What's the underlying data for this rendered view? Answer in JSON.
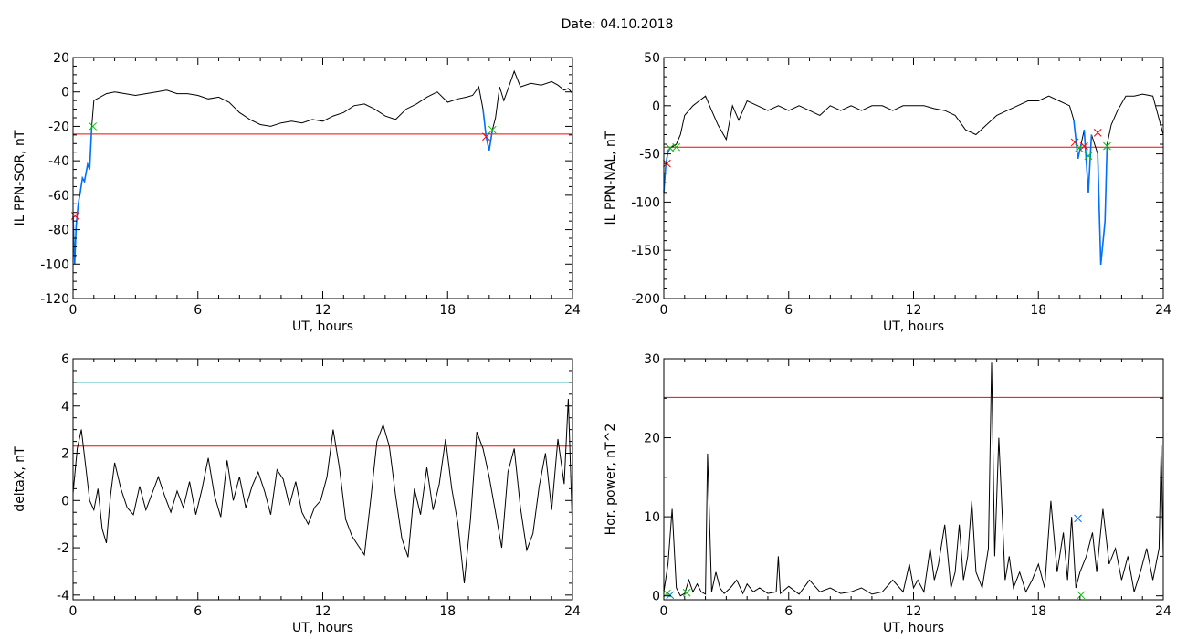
{
  "title": "Date:  04.10.2018",
  "colors": {
    "trace": "#000000",
    "threshold": "#ff0000",
    "segment": "#0070ff",
    "cyan_threshold": "#00a0a0",
    "start_marker": "#00c000",
    "end_marker": "#ff0000"
  },
  "chart_data": [
    {
      "id": "sor",
      "type": "line",
      "xlabel": "UT, hours",
      "ylabel": "IL PPN-SOR, nT",
      "xlim": [
        0,
        24
      ],
      "ylim": [
        -120,
        20
      ],
      "xticks": [
        0,
        6,
        12,
        18,
        24
      ],
      "yticks": [
        20,
        0,
        -20,
        -40,
        -60,
        -80,
        -100,
        -120
      ],
      "thresholds": [
        {
          "value": -24.5,
          "color": "#ff0000"
        }
      ],
      "series": [
        {
          "color": "#000000",
          "x": [
            0,
            0.08,
            0.15,
            0.25,
            0.35,
            0.45,
            0.55,
            0.7,
            0.8,
            0.9,
            1.0,
            1.3,
            1.6,
            2,
            2.5,
            3,
            3.5,
            4,
            4.5,
            5,
            5.5,
            6,
            6.5,
            7,
            7.5,
            8,
            8.5,
            9,
            9.5,
            10,
            10.5,
            11,
            11.5,
            12,
            12.5,
            13,
            13.5,
            14,
            14.5,
            15,
            15.5,
            16,
            16.5,
            17,
            17.5,
            18,
            18.5,
            18.9,
            19.2,
            19.5,
            19.7,
            19.85,
            20.0,
            20.15,
            20.3,
            20.5,
            20.7,
            21,
            21.2,
            21.5,
            22,
            22.5,
            23,
            23.3,
            23.6,
            23.8,
            24
          ],
          "y": [
            -72,
            -100,
            -78,
            -65,
            -58,
            -50,
            -52,
            -42,
            -45,
            -20,
            -5,
            -3,
            -1,
            0,
            -1,
            -2,
            -1,
            0,
            1,
            -1,
            -1,
            -2,
            -4,
            -3,
            -6,
            -12,
            -16,
            -19,
            -20,
            -18,
            -17,
            -18,
            -16,
            -17,
            -14,
            -12,
            -8,
            -7,
            -10,
            -14,
            -16,
            -10,
            -7,
            -3,
            0,
            -6,
            -4,
            -3,
            -2,
            3,
            -10,
            -26,
            -34,
            -22,
            -15,
            3,
            -5,
            5,
            12,
            3,
            5,
            4,
            6,
            4,
            1,
            2,
            -1
          ]
        },
        {
          "color": "#0070ff",
          "x": [
            0,
            0.08,
            0.15,
            0.25,
            0.35,
            0.45,
            0.55,
            0.7,
            0.8,
            0.9
          ],
          "y": [
            -72,
            -100,
            -78,
            -65,
            -58,
            -50,
            -52,
            -42,
            -45,
            -20
          ]
        },
        {
          "color": "#0070ff",
          "x": [
            19.7,
            19.85,
            20.0,
            20.15
          ],
          "y": [
            -10,
            -26,
            -34,
            -22
          ]
        }
      ],
      "markers": [
        {
          "x": 0.1,
          "y": -72,
          "color": "#ff0000"
        },
        {
          "x": 0.95,
          "y": -20,
          "color": "#00c000"
        },
        {
          "x": 19.85,
          "y": -26,
          "color": "#ff0000"
        },
        {
          "x": 20.15,
          "y": -22,
          "color": "#00c000"
        }
      ]
    },
    {
      "id": "nal",
      "type": "line",
      "xlabel": "UT, hours",
      "ylabel": "IL PPN-NAL, nT",
      "xlim": [
        0,
        24
      ],
      "ylim": [
        -200,
        50
      ],
      "xticks": [
        0,
        6,
        12,
        18,
        24
      ],
      "yticks": [
        50,
        0,
        -50,
        -100,
        -150,
        -200
      ],
      "thresholds": [
        {
          "value": -43,
          "color": "#ff0000"
        }
      ],
      "series": [
        {
          "color": "#000000",
          "x": [
            0,
            0.1,
            0.2,
            0.3,
            0.45,
            0.6,
            0.8,
            1.0,
            1.2,
            1.4,
            1.7,
            2.0,
            2.3,
            2.6,
            3.0,
            3.3,
            3.6,
            4.0,
            4.5,
            5,
            5.5,
            6,
            6.5,
            7,
            7.5,
            8,
            8.5,
            9,
            9.5,
            10,
            10.5,
            11,
            11.5,
            12,
            12.5,
            13,
            13.5,
            14,
            14.5,
            15,
            15.5,
            16,
            16.5,
            17,
            17.5,
            18,
            18.5,
            19,
            19.5,
            19.7,
            19.9,
            20.05,
            20.2,
            20.4,
            20.55,
            20.7,
            20.85,
            21.0,
            21.2,
            21.3,
            21.5,
            21.8,
            22.2,
            22.6,
            23,
            23.5,
            24
          ],
          "y": [
            -90,
            -60,
            -48,
            -44,
            -42,
            -40,
            -30,
            -10,
            -5,
            0,
            5,
            10,
            -5,
            -20,
            -35,
            0,
            -15,
            5,
            0,
            -5,
            0,
            -5,
            0,
            -5,
            -10,
            0,
            -5,
            0,
            -5,
            0,
            0,
            -5,
            0,
            0,
            0,
            -3,
            -5,
            -10,
            -25,
            -30,
            -20,
            -10,
            -5,
            0,
            5,
            5,
            10,
            5,
            0,
            -15,
            -55,
            -40,
            -25,
            -90,
            -30,
            -40,
            -50,
            -165,
            -120,
            -40,
            -20,
            -5,
            10,
            10,
            12,
            10,
            -30
          ]
        },
        {
          "color": "#0070ff",
          "x": [
            0,
            0.1,
            0.2,
            0.3
          ],
          "y": [
            -90,
            -60,
            -48,
            -44
          ]
        },
        {
          "color": "#0070ff",
          "x": [
            19.7,
            19.9,
            20.05
          ],
          "y": [
            -15,
            -55,
            -40
          ]
        },
        {
          "color": "#0070ff",
          "x": [
            20.2,
            20.4,
            20.55
          ],
          "y": [
            -25,
            -90,
            -30
          ]
        },
        {
          "color": "#0070ff",
          "x": [
            20.85,
            21.0,
            21.2,
            21.3
          ],
          "y": [
            -50,
            -165,
            -120,
            -40
          ]
        }
      ],
      "markers": [
        {
          "x": 0.15,
          "y": -60,
          "color": "#ff0000"
        },
        {
          "x": 0.3,
          "y": -44,
          "color": "#00c000"
        },
        {
          "x": 0.6,
          "y": -43,
          "color": "#00c000"
        },
        {
          "x": 19.75,
          "y": -38,
          "color": "#ff0000"
        },
        {
          "x": 19.95,
          "y": -44,
          "color": "#00c000"
        },
        {
          "x": 20.2,
          "y": -42,
          "color": "#ff0000"
        },
        {
          "x": 20.4,
          "y": -52,
          "color": "#00c000"
        },
        {
          "x": 20.85,
          "y": -28,
          "color": "#ff0000"
        },
        {
          "x": 21.3,
          "y": -42,
          "color": "#00c000"
        }
      ]
    },
    {
      "id": "deltax",
      "type": "line",
      "xlabel": "UT, hours",
      "ylabel": "deltaX, nT",
      "xlim": [
        0,
        24
      ],
      "ylim": [
        -4.2,
        6
      ],
      "xticks": [
        0,
        6,
        12,
        18,
        24
      ],
      "yticks": [
        6,
        4,
        2,
        0,
        -2,
        -4
      ],
      "thresholds": [
        {
          "value": 5.0,
          "color": "#00a0a0"
        },
        {
          "value": 2.3,
          "color": "#ff0000"
        }
      ],
      "series": [
        {
          "color": "#000000",
          "x": [
            0,
            0.2,
            0.4,
            0.6,
            0.8,
            1.0,
            1.2,
            1.4,
            1.6,
            1.8,
            2.0,
            2.3,
            2.6,
            2.9,
            3.2,
            3.5,
            3.8,
            4.1,
            4.4,
            4.7,
            5.0,
            5.3,
            5.6,
            5.9,
            6.2,
            6.5,
            6.8,
            7.1,
            7.4,
            7.7,
            8.0,
            8.3,
            8.6,
            8.9,
            9.2,
            9.5,
            9.8,
            10.1,
            10.4,
            10.7,
            11.0,
            11.3,
            11.6,
            11.9,
            12.2,
            12.5,
            12.8,
            13.1,
            13.4,
            13.7,
            14.0,
            14.3,
            14.6,
            14.9,
            15.2,
            15.5,
            15.8,
            16.1,
            16.4,
            16.7,
            17.0,
            17.3,
            17.6,
            17.9,
            18.2,
            18.5,
            18.8,
            19.1,
            19.4,
            19.7,
            20.0,
            20.3,
            20.6,
            20.9,
            21.2,
            21.5,
            21.8,
            22.1,
            22.4,
            22.7,
            23.0,
            23.3,
            23.6,
            23.8,
            24.0
          ],
          "y": [
            0.3,
            2.2,
            3.0,
            1.5,
            0.0,
            -0.4,
            0.5,
            -1.2,
            -1.8,
            0.2,
            1.6,
            0.5,
            -0.3,
            -0.6,
            0.6,
            -0.4,
            0.3,
            1.0,
            0.2,
            -0.5,
            0.4,
            -0.3,
            0.8,
            -0.6,
            0.5,
            1.8,
            0.2,
            -0.7,
            1.7,
            0.0,
            1.0,
            -0.3,
            0.6,
            1.2,
            0.4,
            -0.6,
            1.3,
            0.9,
            -0.2,
            0.8,
            -0.5,
            -1.0,
            -0.3,
            0.0,
            1.0,
            3.0,
            1.4,
            -0.8,
            -1.5,
            -1.9,
            -2.3,
            0.0,
            2.5,
            3.2,
            2.3,
            0.2,
            -1.6,
            -2.4,
            0.5,
            -0.6,
            1.4,
            -0.4,
            0.7,
            2.6,
            0.5,
            -1.0,
            -3.5,
            -0.8,
            2.9,
            2.2,
            1.0,
            -0.5,
            -2.0,
            1.2,
            2.2,
            -0.3,
            -2.1,
            -1.4,
            0.6,
            2.0,
            -0.4,
            2.6,
            0.7,
            4.3,
            -1.3
          ]
        }
      ],
      "markers": []
    },
    {
      "id": "horpower",
      "type": "line",
      "xlabel": "UT, hours",
      "ylabel": "Hor. power, nT^2",
      "xlim": [
        0,
        24
      ],
      "ylim": [
        -0.5,
        30
      ],
      "xticks": [
        0,
        6,
        12,
        18,
        24
      ],
      "yticks": [
        30,
        20,
        10,
        0
      ],
      "thresholds": [
        {
          "value": 25.1,
          "color": "#ff0000"
        }
      ],
      "series": [
        {
          "color": "#000000",
          "x": [
            0,
            0.2,
            0.4,
            0.6,
            0.8,
            1.0,
            1.2,
            1.4,
            1.6,
            1.8,
            2.0,
            2.1,
            2.3,
            2.5,
            2.7,
            2.9,
            3.2,
            3.5,
            3.8,
            4.0,
            4.3,
            4.6,
            5.0,
            5.4,
            5.5,
            5.6,
            6.0,
            6.5,
            7.0,
            7.5,
            8.0,
            8.5,
            9.0,
            9.5,
            10.0,
            10.5,
            11.0,
            11.5,
            11.8,
            12.0,
            12.2,
            12.5,
            12.8,
            13.0,
            13.2,
            13.5,
            13.8,
            14.0,
            14.2,
            14.4,
            14.6,
            14.8,
            15.0,
            15.3,
            15.6,
            15.75,
            15.9,
            16.1,
            16.4,
            16.6,
            16.8,
            17.1,
            17.4,
            17.7,
            18.0,
            18.3,
            18.6,
            18.9,
            19.2,
            19.4,
            19.6,
            19.8,
            20.0,
            20.3,
            20.6,
            20.8,
            21.1,
            21.4,
            21.7,
            22.0,
            22.3,
            22.6,
            22.9,
            23.2,
            23.5,
            23.8,
            23.9,
            24.0
          ],
          "y": [
            0.5,
            4,
            11,
            1,
            0,
            0.3,
            2,
            0.5,
            1.5,
            0.5,
            0.2,
            18,
            0.5,
            3,
            1,
            0.3,
            1,
            2,
            0.3,
            1.5,
            0.5,
            1,
            0.3,
            0.5,
            5,
            0.3,
            1.2,
            0.2,
            2,
            0.5,
            1,
            0.3,
            0.5,
            1,
            0.2,
            0.5,
            2,
            0.5,
            4,
            1,
            2,
            0.5,
            6,
            2,
            4,
            9,
            1,
            3,
            9,
            2,
            5,
            12,
            3,
            1,
            6,
            29.5,
            5,
            20,
            2,
            5,
            1,
            3,
            0.5,
            2,
            4,
            1,
            12,
            3,
            8,
            2,
            10,
            1,
            3,
            5,
            8,
            3,
            11,
            4,
            6,
            2,
            5,
            0.5,
            3,
            6,
            2,
            6,
            19,
            5
          ]
        }
      ],
      "markers": [
        {
          "x": 0.15,
          "y": 0.3,
          "color": "#00c000"
        },
        {
          "x": 0.3,
          "y": 0.1,
          "color": "#0070ff"
        },
        {
          "x": 1.1,
          "y": 0.4,
          "color": "#00c000"
        },
        {
          "x": 19.9,
          "y": 9.8,
          "color": "#0070ff"
        },
        {
          "x": 20.05,
          "y": 0.1,
          "color": "#00c000"
        }
      ]
    }
  ]
}
